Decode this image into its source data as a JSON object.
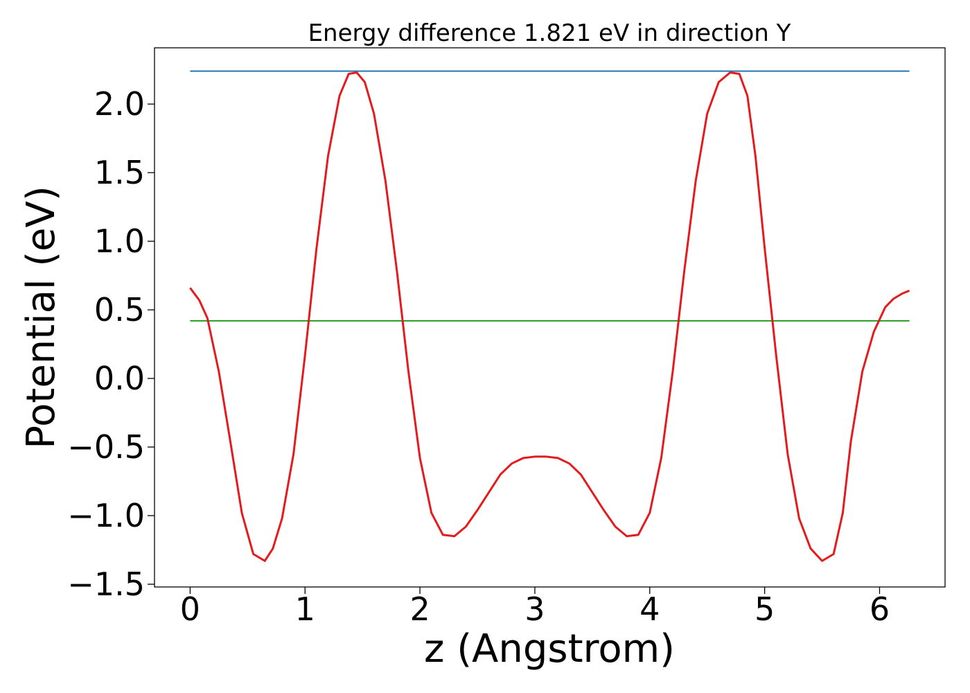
{
  "chart_data": {
    "type": "line",
    "title": "Energy difference 1.821 eV in direction Y",
    "xlabel": "z (Angstrom)",
    "ylabel": "Potential (eV)",
    "xlim": [
      -0.31,
      6.57
    ],
    "ylim": [
      -1.52,
      2.41
    ],
    "xticks": [
      0,
      1,
      2,
      3,
      4,
      5,
      6
    ],
    "xtick_labels": [
      "0",
      "1",
      "2",
      "3",
      "4",
      "5",
      "6"
    ],
    "yticks": [
      -1.5,
      -1.0,
      -0.5,
      0.0,
      0.5,
      1.0,
      1.5,
      2.0
    ],
    "ytick_labels": [
      "−1.5",
      "−1.0",
      "−0.5",
      "0.0",
      "0.5",
      "1.0",
      "1.5",
      "2.0"
    ],
    "grid": false,
    "legend": "none",
    "series": [
      {
        "color": "#1f77b4",
        "style": "hline",
        "x": [
          0,
          6.26
        ],
        "y": [
          2.24,
          2.24
        ]
      },
      {
        "color": "#2ca02c",
        "style": "hline",
        "x": [
          0,
          6.26
        ],
        "y": [
          0.42,
          0.42
        ]
      },
      {
        "color": "#e41a1c",
        "style": "curve",
        "x": [
          0.0,
          0.08,
          0.15,
          0.25,
          0.35,
          0.45,
          0.55,
          0.65,
          0.72,
          0.8,
          0.9,
          1.0,
          1.1,
          1.2,
          1.3,
          1.38,
          1.45,
          1.52,
          1.6,
          1.7,
          1.8,
          1.9,
          2.0,
          2.1,
          2.2,
          2.3,
          2.4,
          2.5,
          2.6,
          2.7,
          2.8,
          2.9,
          3.0,
          3.1,
          3.2,
          3.3,
          3.4,
          3.5,
          3.6,
          3.7,
          3.8,
          3.9,
          4.0,
          4.1,
          4.2,
          4.3,
          4.4,
          4.5,
          4.6,
          4.7,
          4.78,
          4.85,
          4.92,
          5.0,
          5.1,
          5.2,
          5.3,
          5.4,
          5.5,
          5.6,
          5.68,
          5.75,
          5.85,
          5.95,
          6.05,
          6.12,
          6.2,
          6.26
        ],
        "y": [
          0.66,
          0.57,
          0.44,
          0.05,
          -0.46,
          -0.98,
          -1.28,
          -1.33,
          -1.24,
          -1.02,
          -0.55,
          0.17,
          0.95,
          1.62,
          2.06,
          2.22,
          2.23,
          2.16,
          1.93,
          1.44,
          0.78,
          0.05,
          -0.58,
          -0.98,
          -1.14,
          -1.15,
          -1.08,
          -0.96,
          -0.83,
          -0.7,
          -0.62,
          -0.58,
          -0.57,
          -0.57,
          -0.58,
          -0.62,
          -0.7,
          -0.83,
          -0.96,
          -1.08,
          -1.15,
          -1.14,
          -0.98,
          -0.58,
          0.05,
          0.78,
          1.44,
          1.93,
          2.16,
          2.23,
          2.22,
          2.06,
          1.62,
          0.95,
          0.17,
          -0.55,
          -1.02,
          -1.24,
          -1.33,
          -1.28,
          -0.98,
          -0.46,
          0.05,
          0.34,
          0.52,
          0.58,
          0.62,
          0.64
        ]
      }
    ]
  }
}
